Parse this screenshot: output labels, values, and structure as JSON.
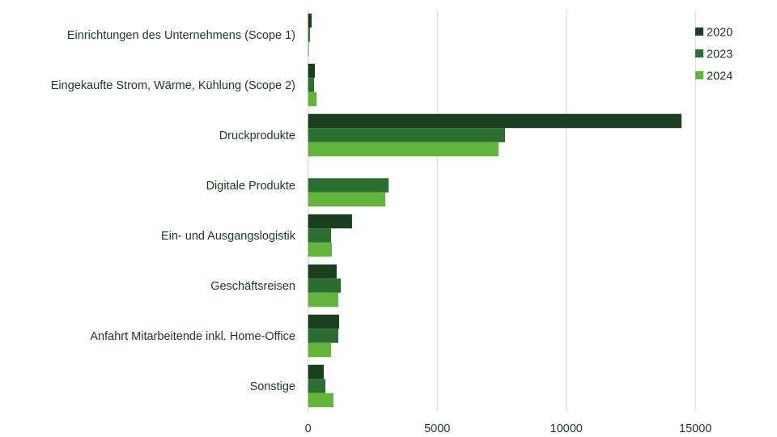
{
  "chart_data": {
    "type": "bar",
    "orientation": "horizontal",
    "categories": [
      "Einrichtungen des Unternehmens (Scope 1)",
      "Eingekaufte Strom, Wärme, Kühlung (Scope 2)",
      "Druckprodukte",
      "Digitale Produkte",
      "Ein- und Ausgangslogistik",
      "Geschäftsreisen",
      "Anfahrt Mitarbeitende inkl. Home-Office",
      "Sonstige"
    ],
    "series": [
      {
        "name": "2020",
        "color": "#1b3d20",
        "values": [
          135,
          260,
          14460,
          0,
          1700,
          1105,
          1200,
          605
        ]
      },
      {
        "name": "2023",
        "color": "#2a6e30",
        "values": [
          70,
          230,
          7630,
          3120,
          890,
          1265,
          1170,
          670
        ]
      },
      {
        "name": "2024",
        "color": "#62b53a",
        "values": [
          25,
          325,
          7375,
          2990,
          920,
          1170,
          890,
          980
        ]
      }
    ],
    "xlim": [
      0,
      17000
    ],
    "xticks": [
      "0",
      "5000",
      "10000",
      "15000"
    ],
    "xtick_values": [
      0,
      5000,
      10000,
      15000
    ],
    "grid": "vertical",
    "legend": "top-right",
    "title": "",
    "xlabel": "",
    "ylabel": ""
  }
}
